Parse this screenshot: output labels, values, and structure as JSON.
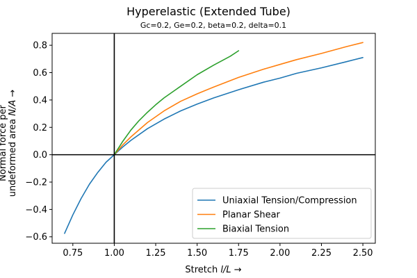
{
  "chart_data": {
    "type": "line",
    "title": "Hyperelastic (Extended Tube)",
    "subtitle": "Gc=0.2, Ge=0.2, beta=0.2, delta=0.1",
    "xlabel_prefix": "Stretch ",
    "xlabel_var": "l/L",
    "xlabel_suffix": "  →",
    "ylabel_line1": "Normal force per",
    "ylabel_line2_prefix": "undeformed area ",
    "ylabel_line2_var": "N/A",
    "ylabel_line2_suffix": "  →",
    "xlim": [
      0.625,
      2.575
    ],
    "ylim": [
      -0.647,
      0.887
    ],
    "xticks": [
      0.75,
      1.0,
      1.25,
      1.5,
      1.75,
      2.0,
      2.25,
      2.5
    ],
    "xtick_labels": [
      "0.75",
      "1.00",
      "1.25",
      "1.50",
      "1.75",
      "2.00",
      "2.25",
      "2.50"
    ],
    "yticks": [
      -0.6,
      -0.4,
      -0.2,
      0.0,
      0.2,
      0.4,
      0.6,
      0.8
    ],
    "ytick_labels": [
      "−0.6",
      "−0.4",
      "−0.2",
      "0.0",
      "0.2",
      "0.4",
      "0.6",
      "0.8"
    ],
    "reference_lines": {
      "x": 1.0,
      "y": 0.0
    },
    "legend_position": "lower right",
    "series": [
      {
        "name": "Uniaxial Tension/Compression",
        "color": "#1f77b4",
        "x": [
          0.7,
          0.75,
          0.8,
          0.85,
          0.9,
          0.95,
          1.0,
          1.05,
          1.1,
          1.2,
          1.3,
          1.4,
          1.5,
          1.6,
          1.75,
          1.9,
          2.0,
          2.1,
          2.25,
          2.4,
          2.5
        ],
        "y": [
          -0.575,
          -0.44,
          -0.32,
          -0.215,
          -0.13,
          -0.055,
          0.0,
          0.055,
          0.105,
          0.19,
          0.26,
          0.32,
          0.37,
          0.415,
          0.475,
          0.53,
          0.56,
          0.595,
          0.635,
          0.68,
          0.71
        ]
      },
      {
        "name": "Planar Shear",
        "color": "#ff7f0e",
        "x": [
          1.0,
          1.05,
          1.1,
          1.2,
          1.3,
          1.4,
          1.5,
          1.6,
          1.75,
          1.9,
          2.0,
          2.1,
          2.25,
          2.4,
          2.5
        ],
        "y": [
          0.0,
          0.07,
          0.13,
          0.235,
          0.32,
          0.39,
          0.445,
          0.495,
          0.565,
          0.625,
          0.66,
          0.695,
          0.74,
          0.79,
          0.82
        ]
      },
      {
        "name": "Biaxial Tension",
        "color": "#2ca02c",
        "x": [
          1.0,
          1.05,
          1.1,
          1.15,
          1.2,
          1.25,
          1.3,
          1.4,
          1.5,
          1.6,
          1.7,
          1.75
        ],
        "y": [
          0.0,
          0.095,
          0.18,
          0.25,
          0.31,
          0.365,
          0.415,
          0.5,
          0.585,
          0.655,
          0.72,
          0.76
        ]
      }
    ]
  }
}
